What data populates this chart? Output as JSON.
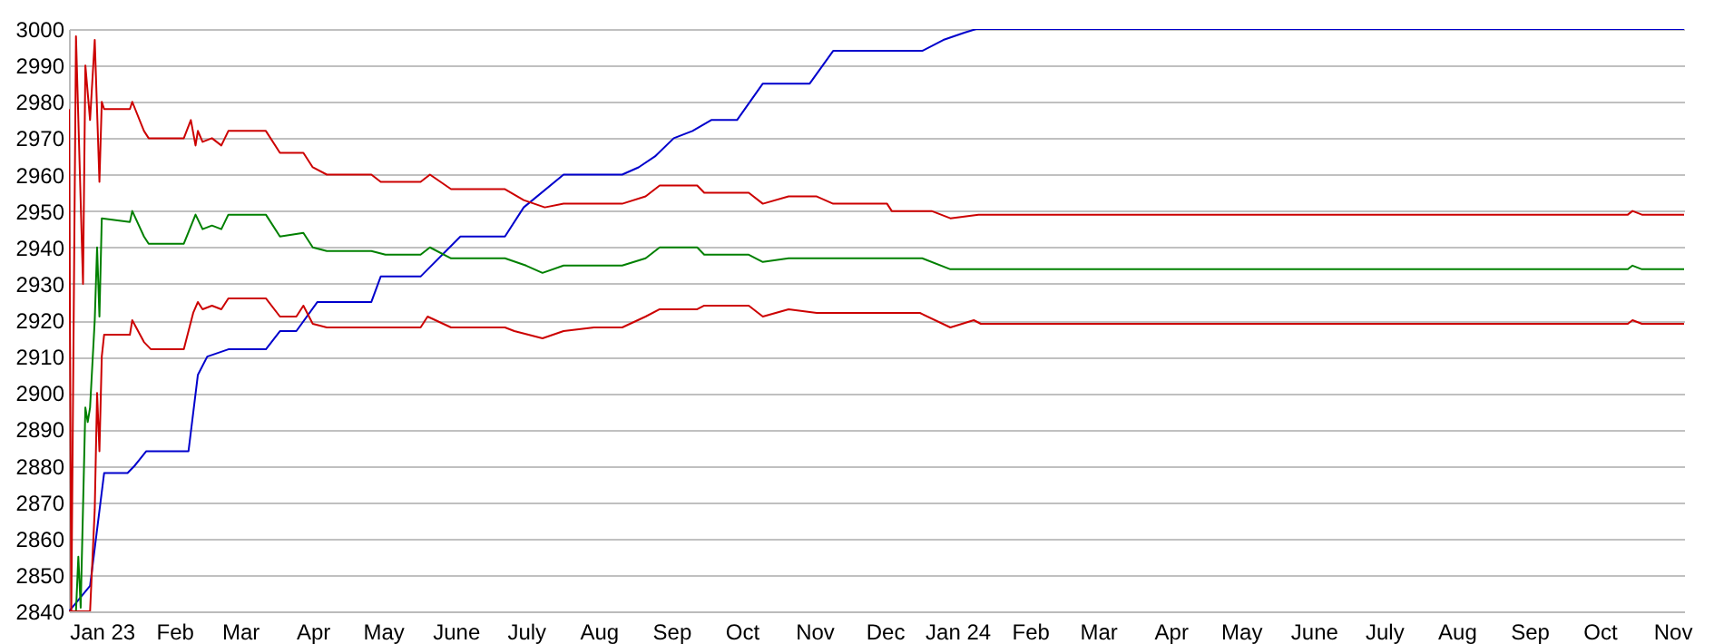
{
  "chart_data": {
    "type": "line",
    "xlim": [
      "2023-01-01",
      "2024-11-20"
    ],
    "xticks": [
      {
        "value": "2023-01-15",
        "label": "Jan 23"
      },
      {
        "value": "2023-02-15",
        "label": "Feb"
      },
      {
        "value": "2023-03-15",
        "label": "Mar"
      },
      {
        "value": "2023-04-15",
        "label": "Apr"
      },
      {
        "value": "2023-05-15",
        "label": "May"
      },
      {
        "value": "2023-06-15",
        "label": "June"
      },
      {
        "value": "2023-07-15",
        "label": "July"
      },
      {
        "value": "2023-08-15",
        "label": "Aug"
      },
      {
        "value": "2023-09-15",
        "label": "Sep"
      },
      {
        "value": "2023-10-15",
        "label": "Oct"
      },
      {
        "value": "2023-11-15",
        "label": "Nov"
      },
      {
        "value": "2023-12-15",
        "label": "Dec"
      },
      {
        "value": "2024-01-15",
        "label": "Jan 24"
      },
      {
        "value": "2024-02-15",
        "label": "Feb"
      },
      {
        "value": "2024-03-15",
        "label": "Mar"
      },
      {
        "value": "2024-04-15",
        "label": "Apr"
      },
      {
        "value": "2024-05-15",
        "label": "May"
      },
      {
        "value": "2024-06-15",
        "label": "June"
      },
      {
        "value": "2024-07-15",
        "label": "July"
      },
      {
        "value": "2024-08-15",
        "label": "Aug"
      },
      {
        "value": "2024-09-15",
        "label": "Sep"
      },
      {
        "value": "2024-10-15",
        "label": "Oct"
      },
      {
        "value": "2024-11-15",
        "label": "Nov"
      }
    ],
    "ylim": [
      2840,
      3000
    ],
    "yticks": [
      2840,
      2850,
      2860,
      2870,
      2880,
      2890,
      2900,
      2910,
      2920,
      2930,
      2940,
      2950,
      2960,
      2970,
      2980,
      2990,
      3000
    ],
    "grid": "y",
    "series": [
      {
        "color": "#0000cc",
        "x": [
          "2023-01-01",
          "2023-01-10",
          "2023-01-16",
          "2023-01-26",
          "2023-01-29",
          "2023-02-03",
          "2023-02-21",
          "2023-02-25",
          "2023-03-01",
          "2023-03-10",
          "2023-03-26",
          "2023-04-01",
          "2023-04-08",
          "2023-04-17",
          "2023-05-10",
          "2023-05-14",
          "2023-05-31",
          "2023-06-17",
          "2023-07-06",
          "2023-07-14",
          "2023-07-31",
          "2023-08-25",
          "2023-09-01",
          "2023-09-08",
          "2023-09-16",
          "2023-09-24",
          "2023-10-02",
          "2023-10-13",
          "2023-10-24",
          "2023-11-13",
          "2023-11-23",
          "2023-12-31",
          "2024-01-09",
          "2024-01-18",
          "2024-01-23",
          "2024-11-20"
        ],
        "values": [
          2840,
          2847,
          2878,
          2878,
          2880,
          2884,
          2884,
          2905,
          2910,
          2912,
          2912,
          2917,
          2917,
          2925,
          2925,
          2932,
          2932,
          2943,
          2943,
          2951,
          2960,
          2960,
          2962,
          2965,
          2970,
          2972,
          2975,
          2975,
          2985,
          2985,
          2994,
          2994,
          2997,
          2999,
          3000,
          3000
        ]
      },
      {
        "color": "#cc0000",
        "x": [
          "2023-01-01",
          "2023-01-02",
          "2023-01-04",
          "2023-01-07",
          "2023-01-08",
          "2023-01-10",
          "2023-01-12",
          "2023-01-14",
          "2023-01-15",
          "2023-01-16",
          "2023-01-27",
          "2023-01-28",
          "2023-02-02",
          "2023-02-04",
          "2023-02-19",
          "2023-02-22",
          "2023-02-24",
          "2023-02-25",
          "2023-02-27",
          "2023-03-03",
          "2023-03-07",
          "2023-03-10",
          "2023-03-26",
          "2023-04-01",
          "2023-04-11",
          "2023-04-15",
          "2023-04-21",
          "2023-05-10",
          "2023-05-14",
          "2023-05-31",
          "2023-06-04",
          "2023-06-13",
          "2023-07-06",
          "2023-07-14",
          "2023-07-23",
          "2023-07-31",
          "2023-08-25",
          "2023-09-04",
          "2023-09-10",
          "2023-09-26",
          "2023-09-29",
          "2023-10-18",
          "2023-10-24",
          "2023-11-04",
          "2023-11-16",
          "2023-11-23",
          "2023-12-16",
          "2023-12-18",
          "2024-01-04",
          "2024-01-12",
          "2024-01-24",
          "2024-10-27",
          "2024-10-29",
          "2024-11-02",
          "2024-11-20"
        ],
        "values": [
          2978,
          2840,
          2998,
          2930,
          2990,
          2975,
          2997,
          2958,
          2980,
          2978,
          2978,
          2980,
          2972,
          2970,
          2970,
          2975,
          2968,
          2972,
          2969,
          2970,
          2968,
          2972,
          2972,
          2966,
          2966,
          2962,
          2960,
          2960,
          2958,
          2958,
          2960,
          2956,
          2956,
          2953,
          2951,
          2952,
          2952,
          2954,
          2957,
          2957,
          2955,
          2955,
          2952,
          2954,
          2954,
          2952,
          2952,
          2950,
          2950,
          2948,
          2949,
          2949,
          2950,
          2949,
          2949
        ]
      },
      {
        "color": "#008000",
        "x": [
          "2023-01-01",
          "2023-01-04",
          "2023-01-05",
          "2023-01-06",
          "2023-01-08",
          "2023-01-09",
          "2023-01-10",
          "2023-01-12",
          "2023-01-13",
          "2023-01-14",
          "2023-01-15",
          "2023-01-27",
          "2023-01-28",
          "2023-02-02",
          "2023-02-04",
          "2023-02-19",
          "2023-02-24",
          "2023-02-27",
          "2023-03-03",
          "2023-03-07",
          "2023-03-10",
          "2023-03-26",
          "2023-04-01",
          "2023-04-11",
          "2023-04-15",
          "2023-04-21",
          "2023-05-10",
          "2023-05-16",
          "2023-05-31",
          "2023-06-04",
          "2023-06-13",
          "2023-07-06",
          "2023-07-15",
          "2023-07-22",
          "2023-07-31",
          "2023-08-25",
          "2023-09-04",
          "2023-09-10",
          "2023-09-26",
          "2023-09-29",
          "2023-10-18",
          "2023-10-24",
          "2023-11-04",
          "2023-11-23",
          "2023-12-31",
          "2024-01-12",
          "2024-10-27",
          "2024-10-29",
          "2024-11-02",
          "2024-11-20"
        ],
        "values": [
          2840,
          2840,
          2855,
          2841,
          2896,
          2892,
          2896,
          2920,
          2940,
          2921,
          2948,
          2947,
          2950,
          2943,
          2941,
          2941,
          2949,
          2945,
          2946,
          2945,
          2949,
          2949,
          2943,
          2944,
          2940,
          2939,
          2939,
          2938,
          2938,
          2940,
          2937,
          2937,
          2935,
          2933,
          2935,
          2935,
          2937,
          2940,
          2940,
          2938,
          2938,
          2936,
          2937,
          2937,
          2937,
          2934,
          2934,
          2935,
          2934,
          2934
        ]
      },
      {
        "color": "#cc0000",
        "x": [
          "2023-01-01",
          "2023-01-10",
          "2023-01-12",
          "2023-01-13",
          "2023-01-14",
          "2023-01-15",
          "2023-01-16",
          "2023-01-27",
          "2023-01-28",
          "2023-02-02",
          "2023-02-05",
          "2023-02-19",
          "2023-02-23",
          "2023-02-25",
          "2023-02-27",
          "2023-03-03",
          "2023-03-07",
          "2023-03-10",
          "2023-03-26",
          "2023-04-01",
          "2023-04-08",
          "2023-04-11",
          "2023-04-15",
          "2023-04-21",
          "2023-05-31",
          "2023-06-03",
          "2023-06-13",
          "2023-07-06",
          "2023-07-10",
          "2023-07-22",
          "2023-07-31",
          "2023-08-13",
          "2023-08-25",
          "2023-09-04",
          "2023-09-10",
          "2023-09-26",
          "2023-09-29",
          "2023-10-18",
          "2023-10-24",
          "2023-11-04",
          "2023-11-16",
          "2023-12-30",
          "2024-01-12",
          "2024-01-22",
          "2024-01-25",
          "2024-10-27",
          "2024-10-29",
          "2024-11-02",
          "2024-11-20"
        ],
        "values": [
          2840,
          2840,
          2868,
          2900,
          2884,
          2910,
          2916,
          2916,
          2920,
          2914,
          2912,
          2912,
          2922,
          2925,
          2923,
          2924,
          2923,
          2926,
          2926,
          2921,
          2921,
          2924,
          2919,
          2918,
          2918,
          2921,
          2918,
          2918,
          2917,
          2915,
          2917,
          2918,
          2918,
          2921,
          2923,
          2923,
          2924,
          2924,
          2921,
          2923,
          2922,
          2922,
          2918,
          2920,
          2919,
          2919,
          2920,
          2919,
          2919
        ]
      }
    ]
  }
}
